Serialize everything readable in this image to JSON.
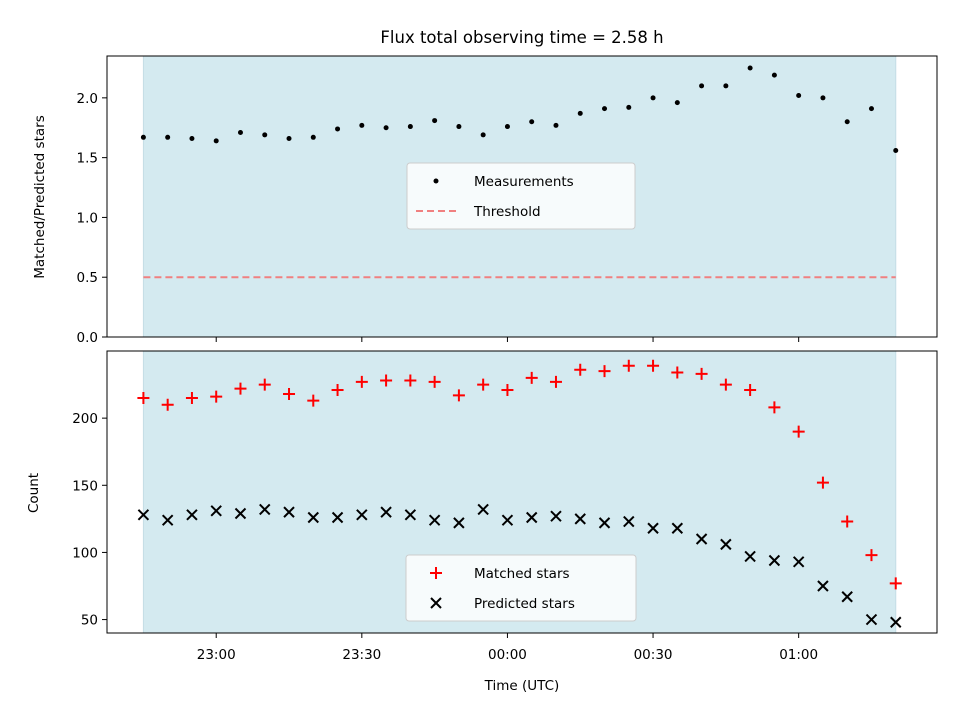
{
  "chart_data": {
    "type": "scatter",
    "title": "Flux total observing time = 2.58 h",
    "xlabel": "Time (UTC)",
    "x_tick_labels": [
      "23:00",
      "23:30",
      "00:00",
      "00:30",
      "01:00"
    ],
    "x_tick_minutes_since_2245": [
      15,
      45,
      75,
      105,
      135
    ],
    "x_range_minutes_since_2245": [
      -7.5,
      163.5
    ],
    "observing_window_minutes_since_2245": [
      0,
      155
    ],
    "window_color": "#d4eaf0",
    "top_panel": {
      "ylabel": "Matched/Predicted stars",
      "ylim": [
        0,
        2.35
      ],
      "yticks": [
        "0.0",
        "0.5",
        "1.0",
        "1.5",
        "2.0"
      ],
      "ytick_values": [
        0,
        0.5,
        1.0,
        1.5,
        2.0
      ],
      "threshold": 0.5,
      "threshold_color": "#f08080",
      "legend": [
        "Measurements",
        "Threshold"
      ],
      "legend_position": "center",
      "measurements": [
        1.67,
        1.67,
        1.66,
        1.64,
        1.71,
        1.69,
        1.66,
        1.67,
        1.74,
        1.77,
        1.75,
        1.76,
        1.81,
        1.76,
        1.69,
        1.76,
        1.8,
        1.77,
        1.87,
        1.91,
        1.92,
        2.0,
        1.96,
        2.1,
        2.1,
        2.25,
        2.19,
        2.02,
        2.0,
        1.8,
        1.91,
        1.56
      ]
    },
    "bottom_panel": {
      "ylabel": "Count",
      "ylim": [
        40,
        250
      ],
      "yticks": [
        "50",
        "100",
        "150",
        "200"
      ],
      "ytick_values": [
        50,
        100,
        150,
        200
      ],
      "legend": [
        "Matched stars",
        "Predicted stars"
      ],
      "legend_position": "lower center",
      "series": [
        {
          "name": "Matched stars",
          "color": "#ff0000",
          "marker": "+",
          "values": [
            215,
            210,
            215,
            216,
            222,
            225,
            218,
            213,
            221,
            227,
            228,
            228,
            227,
            217,
            225,
            221,
            230,
            227,
            236,
            235,
            239,
            239,
            234,
            233,
            225,
            221,
            208,
            190,
            152,
            123,
            98,
            77
          ]
        },
        {
          "name": "Predicted stars",
          "color": "#000000",
          "marker": "x",
          "values": [
            128,
            124,
            128,
            131,
            129,
            132,
            130,
            126,
            126,
            128,
            130,
            128,
            124,
            122,
            132,
            124,
            126,
            127,
            125,
            122,
            123,
            118,
            118,
            110,
            106,
            97,
            94,
            93,
            75,
            67,
            50,
            48
          ]
        }
      ]
    },
    "x_minutes_since_2245": [
      0,
      5,
      10,
      15,
      20,
      25,
      30,
      35,
      40,
      45,
      50,
      55,
      60,
      65,
      70,
      75,
      80,
      85,
      90,
      95,
      100,
      105,
      110,
      115,
      120,
      125,
      130,
      135,
      140,
      145,
      150,
      155
    ]
  }
}
